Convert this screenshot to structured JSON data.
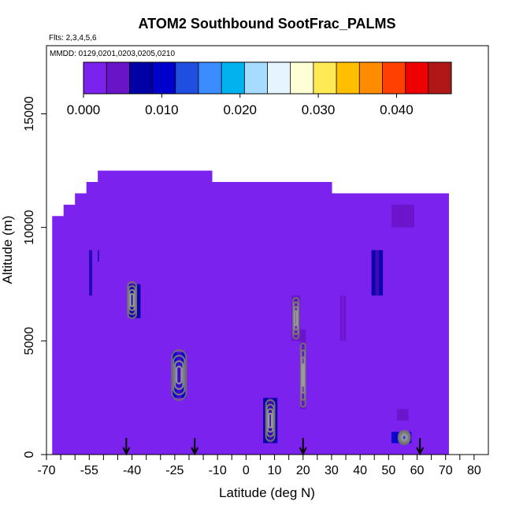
{
  "chart_data": {
    "type": "heatmap",
    "title": "ATOM2 Southbound SootFrac_PALMS",
    "subtitle_lines": [
      "Flts: 2,3,4,5,6",
      "MMDD: 0129,0201,0203,0205,0210"
    ],
    "xlabel": "Latitude (deg N)",
    "ylabel": "Altitude (m)",
    "xlim": [
      -70,
      85
    ],
    "ylim": [
      0,
      18000
    ],
    "x_ticks": [
      -70,
      -55,
      -40,
      -25,
      -10,
      0,
      10,
      20,
      30,
      40,
      50,
      60,
      70,
      80
    ],
    "x_tick_labels": [
      "-70",
      "-55",
      "-40",
      "-25",
      "-10",
      "0",
      "10",
      "20",
      "30",
      "40",
      "50",
      "60",
      "70",
      "80"
    ],
    "x_minor_ticks": [
      -65,
      -60,
      -50,
      -45,
      -35,
      -30,
      -20,
      -15,
      -5,
      5,
      15,
      25,
      35,
      45,
      55,
      65,
      75
    ],
    "y_ticks": [
      0,
      5000,
      10000,
      15000
    ],
    "y_tick_labels": [
      "0",
      "5000",
      "10000",
      "15000"
    ],
    "colorbar": {
      "range": [
        0.0,
        0.047
      ],
      "ticks": [
        0.0,
        0.01,
        0.02,
        0.03,
        0.04
      ],
      "tick_labels": [
        "0.000",
        "0.010",
        "0.020",
        "0.030",
        "0.040"
      ],
      "colors": [
        "#7b22ee",
        "#6a14c8",
        "#0000a4",
        "#0000cc",
        "#1f4fe0",
        "#3a8cff",
        "#00b2ee",
        "#a6dcff",
        "#e6f4ff",
        "#ffffd6",
        "#ffea55",
        "#ffbf00",
        "#ff8c00",
        "#ff4000",
        "#ee0000",
        "#b01818"
      ]
    },
    "background_value": 0.0,
    "profile_top": [
      {
        "lat_start": -68,
        "lat_end": -64,
        "alt_top": 10500
      },
      {
        "lat_start": -64,
        "lat_end": -60,
        "alt_top": 11000
      },
      {
        "lat_start": -60,
        "lat_end": -56,
        "alt_top": 11500
      },
      {
        "lat_start": -56,
        "lat_end": -52,
        "alt_top": 12000
      },
      {
        "lat_start": -52,
        "lat_end": -12,
        "alt_top": 12500
      },
      {
        "lat_start": -12,
        "lat_end": 30,
        "alt_top": 12000
      },
      {
        "lat_start": 30,
        "lat_end": 71,
        "alt_top": 11500
      }
    ],
    "enhancements": [
      {
        "lat_start": -55,
        "lat_end": -54,
        "alt_start": 7000,
        "alt_end": 9000,
        "value": 0.006
      },
      {
        "lat_start": -52,
        "lat_end": -51.5,
        "alt_start": 8500,
        "alt_end": 9000,
        "value": 0.008
      },
      {
        "lat_start": -41,
        "lat_end": -37,
        "alt_start": 6000,
        "alt_end": 7500,
        "value": 0.008
      },
      {
        "lat_start": -26,
        "lat_end": -21,
        "alt_start": 2500,
        "alt_end": 4500,
        "value": 0.009
      },
      {
        "lat_start": 6,
        "lat_end": 11,
        "alt_start": 500,
        "alt_end": 2500,
        "value": 0.007
      },
      {
        "lat_start": 16,
        "lat_end": 19,
        "alt_start": 5000,
        "alt_end": 7000,
        "value": 0.005
      },
      {
        "lat_start": 19,
        "lat_end": 21,
        "alt_start": 2000,
        "alt_end": 5500,
        "value": 0.005
      },
      {
        "lat_start": 33,
        "lat_end": 35,
        "alt_start": 5000,
        "alt_end": 7000,
        "value": 0.004
      },
      {
        "lat_start": 44,
        "lat_end": 48,
        "alt_start": 7000,
        "alt_end": 9000,
        "value": 0.006
      },
      {
        "lat_start": 51,
        "lat_end": 59,
        "alt_start": 10000,
        "alt_end": 11000,
        "value": 0.005
      },
      {
        "lat_start": 53,
        "lat_end": 57,
        "alt_start": 1500,
        "alt_end": 2000,
        "value": 0.005
      },
      {
        "lat_start": 51,
        "lat_end": 58,
        "alt_start": 500,
        "alt_end": 1000,
        "value": 0.009
      },
      {
        "lat_start": 54,
        "lat_end": 57,
        "alt_start": 600,
        "alt_end": 900,
        "value": 0.016
      }
    ],
    "contours": [
      {
        "lat": -40,
        "alt": 6800,
        "lat_radius": 1.5,
        "alt_radius": 800
      },
      {
        "lat": -23.5,
        "alt": 3500,
        "lat_radius": 2.5,
        "alt_radius": 1100
      },
      {
        "lat": 8.5,
        "alt": 1500,
        "lat_radius": 1.5,
        "alt_radius": 900
      },
      {
        "lat": 17.5,
        "alt": 6000,
        "lat_radius": 1.0,
        "alt_radius": 900
      },
      {
        "lat": 20,
        "alt": 3500,
        "lat_radius": 0.8,
        "alt_radius": 1400
      },
      {
        "lat": 55.5,
        "alt": 750,
        "lat_radius": 2.0,
        "alt_radius": 300
      }
    ],
    "flight_markers_lat": [
      -42,
      -18,
      20,
      61
    ]
  }
}
